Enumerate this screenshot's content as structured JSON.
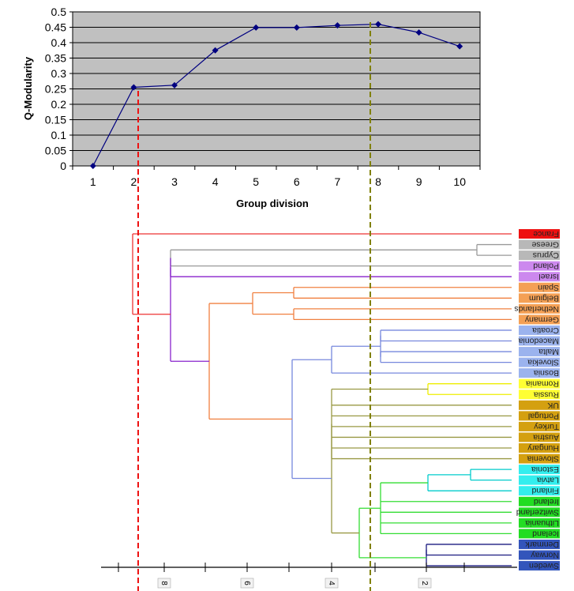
{
  "chart_data": [
    {
      "type": "line",
      "x": [
        1,
        2,
        3,
        4,
        5,
        6,
        7,
        8,
        9,
        10
      ],
      "values": [
        0,
        0.255,
        0.262,
        0.375,
        0.449,
        0.449,
        0.456,
        0.46,
        0.433,
        0.388
      ],
      "xlabel": "Group division",
      "ylabel": "Q-Modularity",
      "xlim": [
        0.5,
        10.5
      ],
      "ylim": [
        0,
        0.5
      ],
      "y_ticks": [
        "0",
        "0.05",
        "0.1",
        "0.15",
        "0.2",
        "0.25",
        "0.3",
        "0.35",
        "0.4",
        "0.45",
        "0.5"
      ],
      "x_ticks": [
        "1",
        "2",
        "3",
        "4",
        "5",
        "6",
        "7",
        "8",
        "9",
        "10"
      ],
      "grid": true,
      "colors": {
        "plot_bg": "#c0c0c0",
        "line": "#000080"
      }
    },
    {
      "type": "dendrogram",
      "axis_ticks": [
        "8",
        "6",
        "4",
        "2"
      ],
      "leaves": [
        {
          "label": "France",
          "color": "#ee1111"
        },
        {
          "label": "Greese",
          "color": "#b8b8b8"
        },
        {
          "label": "Cyprus",
          "color": "#b8b8b8"
        },
        {
          "label": "Poland",
          "color": "#cc88ee"
        },
        {
          "label": "Israel",
          "color": "#cc88ee"
        },
        {
          "label": "Spain",
          "color": "#f4a055"
        },
        {
          "label": "Belgium",
          "color": "#f4a055"
        },
        {
          "label": "Netherlands",
          "color": "#f4a055"
        },
        {
          "label": "Germany",
          "color": "#f4a055"
        },
        {
          "label": "Croatia",
          "color": "#9bb3ee"
        },
        {
          "label": "Macedonia",
          "color": "#9bb3ee"
        },
        {
          "label": "Malta",
          "color": "#9bb3ee"
        },
        {
          "label": "Slovekia",
          "color": "#9bb3ee"
        },
        {
          "label": "Bosnia",
          "color": "#9bb3ee"
        },
        {
          "label": "Romania",
          "color": "#ffff33"
        },
        {
          "label": "Russia",
          "color": "#ffff33"
        },
        {
          "label": "UK",
          "color": "#d4a010"
        },
        {
          "label": "Portugal",
          "color": "#d4a010"
        },
        {
          "label": "Turkey",
          "color": "#d4a010"
        },
        {
          "label": "Austria",
          "color": "#d4a010"
        },
        {
          "label": "Hungary",
          "color": "#d4a010"
        },
        {
          "label": "Slovenia",
          "color": "#d4a010"
        },
        {
          "label": "Estonia",
          "color": "#33eeee"
        },
        {
          "label": "Latvia",
          "color": "#33eeee"
        },
        {
          "label": "Finland",
          "color": "#33eeee"
        },
        {
          "label": "Ireland",
          "color": "#22dd22"
        },
        {
          "label": "Switzerland",
          "color": "#22dd22"
        },
        {
          "label": "Lithuania",
          "color": "#22dd22"
        },
        {
          "label": "Iceland",
          "color": "#22dd22"
        },
        {
          "label": "Denmark",
          "color": "#3355bb"
        },
        {
          "label": "Norway",
          "color": "#3355bb"
        },
        {
          "label": "Sweden",
          "color": "#3355bb"
        }
      ],
      "colors": {
        "red": "#ee3333",
        "grey": "#999999",
        "purple": "#8822cc",
        "orange": "#f08040",
        "blue": "#7788dd",
        "olive": "#999944",
        "yellow": "#eeee00",
        "cyan": "#00cccc",
        "green": "#33dd33",
        "navy": "#1a1a80",
        "cut_red": "#ee1111",
        "cut_olive": "#808000"
      }
    }
  ]
}
